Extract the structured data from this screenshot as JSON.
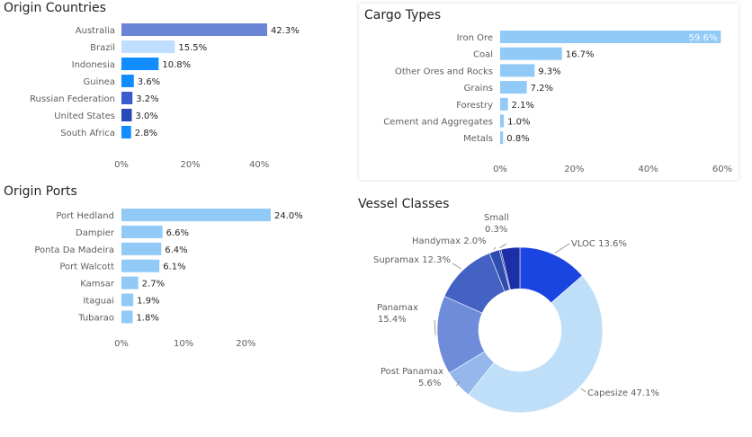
{
  "chart_data": [
    {
      "type": "bar",
      "orientation": "horizontal",
      "title": "Origin Countries",
      "categories": [
        "Australia",
        "Brazil",
        "Indonesia",
        "Guinea",
        "Russian Federation",
        "United States",
        "South Africa"
      ],
      "values": [
        42.3,
        15.5,
        10.8,
        3.6,
        3.2,
        3.0,
        2.8
      ],
      "data_labels": [
        "42.3%",
        "15.5%",
        "10.8%",
        "3.6%",
        "3.2%",
        "3.0%",
        "2.8%"
      ],
      "xticks": [
        "0%",
        "20%",
        "40%"
      ],
      "xlim": [
        0,
        45
      ],
      "colors": [
        "#6b85d6",
        "#c0deff",
        "#118dff",
        "#118dff",
        "#3a5ccc",
        "#2849b8",
        "#118dff"
      ]
    },
    {
      "type": "bar",
      "orientation": "horizontal",
      "title": "Cargo Types",
      "categories": [
        "Iron Ore",
        "Coal",
        "Other Ores and Rocks",
        "Grains",
        "Forestry",
        "Cement and Aggregates",
        "Metals"
      ],
      "values": [
        59.6,
        16.7,
        9.3,
        7.2,
        2.1,
        1.0,
        0.8
      ],
      "data_labels": [
        "59.6%",
        "16.7%",
        "9.3%",
        "7.2%",
        "2.1%",
        "1.0%",
        "0.8%"
      ],
      "xticks": [
        "0%",
        "20%",
        "40%",
        "60%"
      ],
      "xlim": [
        0,
        60
      ],
      "colors": [
        "#91c9f7"
      ]
    },
    {
      "type": "bar",
      "orientation": "horizontal",
      "title": "Origin Ports",
      "categories": [
        "Port Hedland",
        "Dampier",
        "Ponta Da Madeira",
        "Port Walcott",
        "Kamsar",
        "Itaguai",
        "Tubarao"
      ],
      "values": [
        24.0,
        6.6,
        6.4,
        6.1,
        2.7,
        1.9,
        1.8
      ],
      "data_labels": [
        "24.0%",
        "6.6%",
        "6.4%",
        "6.1%",
        "2.7%",
        "1.9%",
        "1.8%"
      ],
      "xticks": [
        "0%",
        "10%",
        "20%"
      ],
      "xlim": [
        0,
        25
      ],
      "colors": [
        "#91c9f7"
      ]
    },
    {
      "type": "pie",
      "subtype": "donut",
      "title": "Vessel Classes",
      "series": [
        {
          "label": "VLOC 13.6%",
          "value": 13.6,
          "color": "#1a45e0"
        },
        {
          "label": "Capesize 47.1%",
          "value": 47.1,
          "color": "#bfdef8"
        },
        {
          "label": "Post Panamax 5.6%",
          "value": 5.6,
          "color": "#95b7ec"
        },
        {
          "label": "Panamax 15.4%",
          "value": 15.4,
          "color": "#6e8cd9"
        },
        {
          "label": "Supramax 12.3%",
          "value": 12.3,
          "color": "#4461c4"
        },
        {
          "label": "Handymax 2.0%",
          "value": 2.0,
          "color": "#2f4dae"
        },
        {
          "label": "Small 0.3%",
          "value": 0.3,
          "color": "#1c33a0"
        },
        {
          "label": "",
          "value": 3.7,
          "color": "#1c2fa8"
        }
      ]
    }
  ]
}
